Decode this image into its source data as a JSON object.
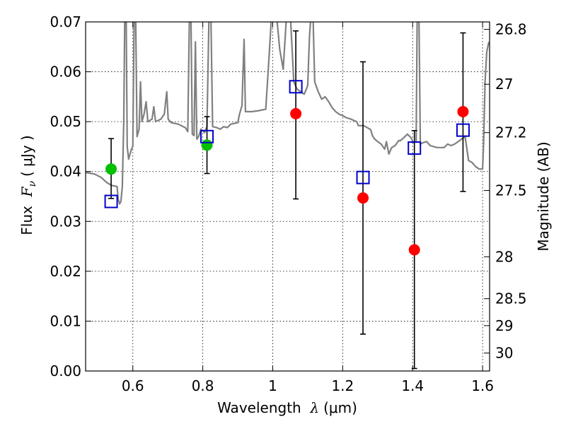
{
  "chart_data": {
    "type": "scatter",
    "xlabel": {
      "prefix": "Wavelength  ",
      "symbol": "λ",
      "unit": "(μm)"
    },
    "ylabel": {
      "prefix": "Flux  ",
      "symbol": "F",
      "sub": "ν",
      "unit": "( μJy )"
    },
    "ylabel_right": "Magnitude (AB)",
    "xlim": [
      0.465,
      1.62
    ],
    "ylim": [
      0.0,
      0.07
    ],
    "grid": true,
    "x_ticks": [
      {
        "value": 0.6,
        "label": "0.6"
      },
      {
        "value": 0.8,
        "label": "0.8"
      },
      {
        "value": 1.0,
        "label": "1"
      },
      {
        "value": 1.2,
        "label": "1.2"
      },
      {
        "value": 1.4,
        "label": "1.4"
      },
      {
        "value": 1.6,
        "label": "1.6"
      }
    ],
    "y_ticks": [
      {
        "value": 0.0,
        "label": "0.00"
      },
      {
        "value": 0.01,
        "label": "0.01"
      },
      {
        "value": 0.02,
        "label": "0.02"
      },
      {
        "value": 0.03,
        "label": "0.03"
      },
      {
        "value": 0.04,
        "label": "0.04"
      },
      {
        "value": 0.05,
        "label": "0.05"
      },
      {
        "value": 0.06,
        "label": "0.06"
      },
      {
        "value": 0.07,
        "label": "0.07"
      }
    ],
    "right_ticks": [
      {
        "label": "26.8",
        "flux": 0.0685
      },
      {
        "label": "27",
        "flux": 0.0575
      },
      {
        "label": "27.2",
        "flux": 0.0478
      },
      {
        "label": "27.5",
        "flux": 0.0362
      },
      {
        "label": "28",
        "flux": 0.0229
      },
      {
        "label": "28.5",
        "flux": 0.0145
      },
      {
        "label": "29",
        "flux": 0.0091
      },
      {
        "label": "30",
        "flux": 0.0036
      }
    ],
    "series": [
      {
        "kind": "model",
        "color": "#808080",
        "points": [
          [
            0.465,
            0.0398
          ],
          [
            0.49,
            0.0395
          ],
          [
            0.51,
            0.0388
          ],
          [
            0.525,
            0.0378
          ],
          [
            0.54,
            0.0372
          ],
          [
            0.555,
            0.037
          ],
          [
            0.558,
            0.0345
          ],
          [
            0.562,
            0.0335
          ],
          [
            0.566,
            0.034
          ],
          [
            0.57,
            0.037
          ],
          [
            0.574,
            0.05
          ],
          [
            0.577,
            0.072
          ],
          [
            0.581,
            0.072
          ],
          [
            0.584,
            0.045
          ],
          [
            0.588,
            0.0425
          ],
          [
            0.592,
            0.0435
          ],
          [
            0.596,
            0.0445
          ],
          [
            0.6,
            0.045
          ],
          [
            0.604,
            0.072
          ],
          [
            0.608,
            0.072
          ],
          [
            0.612,
            0.047
          ],
          [
            0.618,
            0.0485
          ],
          [
            0.622,
            0.058
          ],
          [
            0.626,
            0.05
          ],
          [
            0.632,
            0.0515
          ],
          [
            0.638,
            0.054
          ],
          [
            0.643,
            0.05
          ],
          [
            0.655,
            0.0505
          ],
          [
            0.66,
            0.053
          ],
          [
            0.665,
            0.05
          ],
          [
            0.68,
            0.0505
          ],
          [
            0.69,
            0.0515
          ],
          [
            0.697,
            0.056
          ],
          [
            0.701,
            0.0505
          ],
          [
            0.71,
            0.0498
          ],
          [
            0.73,
            0.0495
          ],
          [
            0.75,
            0.0488
          ],
          [
            0.757,
            0.048
          ],
          [
            0.762,
            0.072
          ],
          [
            0.766,
            0.072
          ],
          [
            0.77,
            0.0475
          ],
          [
            0.775,
            0.0472
          ],
          [
            0.779,
            0.066
          ],
          [
            0.783,
            0.0465
          ],
          [
            0.788,
            0.047
          ],
          [
            0.795,
            0.0485
          ],
          [
            0.805,
            0.0478
          ],
          [
            0.812,
            0.049
          ],
          [
            0.818,
            0.072
          ],
          [
            0.823,
            0.072
          ],
          [
            0.828,
            0.049
          ],
          [
            0.84,
            0.0488
          ],
          [
            0.85,
            0.0485
          ],
          [
            0.86,
            0.049
          ],
          [
            0.87,
            0.0488
          ],
          [
            0.88,
            0.0495
          ],
          [
            0.9,
            0.0498
          ],
          [
            0.905,
            0.0515
          ],
          [
            0.912,
            0.0532
          ],
          [
            0.918,
            0.0665
          ],
          [
            0.922,
            0.052
          ],
          [
            0.94,
            0.052
          ],
          [
            0.96,
            0.0522
          ],
          [
            0.98,
            0.0525
          ],
          [
            0.985,
            0.058
          ],
          [
            0.99,
            0.0635
          ],
          [
            0.996,
            0.0705
          ],
          [
            1.002,
            0.072
          ],
          [
            1.01,
            0.072
          ],
          [
            1.02,
            0.0645
          ],
          [
            1.03,
            0.0605
          ],
          [
            1.04,
            0.072
          ],
          [
            1.05,
            0.072
          ],
          [
            1.06,
            0.058
          ],
          [
            1.07,
            0.0565
          ],
          [
            1.08,
            0.056
          ],
          [
            1.09,
            0.0555
          ],
          [
            1.1,
            0.0572
          ],
          [
            1.105,
            0.067
          ],
          [
            1.11,
            0.072
          ],
          [
            1.115,
            0.072
          ],
          [
            1.12,
            0.058
          ],
          [
            1.13,
            0.056
          ],
          [
            1.14,
            0.0545
          ],
          [
            1.15,
            0.055
          ],
          [
            1.16,
            0.054
          ],
          [
            1.17,
            0.0528
          ],
          [
            1.18,
            0.052
          ],
          [
            1.19,
            0.0515
          ],
          [
            1.2,
            0.0512
          ],
          [
            1.21,
            0.0508
          ],
          [
            1.22,
            0.0506
          ],
          [
            1.23,
            0.0503
          ],
          [
            1.24,
            0.05
          ],
          [
            1.245,
            0.0492
          ],
          [
            1.26,
            0.0492
          ],
          [
            1.27,
            0.0488
          ],
          [
            1.28,
            0.0484
          ],
          [
            1.285,
            0.0472
          ],
          [
            1.29,
            0.0466
          ],
          [
            1.3,
            0.046
          ],
          [
            1.31,
            0.0455
          ],
          [
            1.32,
            0.0445
          ],
          [
            1.325,
            0.046
          ],
          [
            1.332,
            0.0435
          ],
          [
            1.34,
            0.0448
          ],
          [
            1.35,
            0.0452
          ],
          [
            1.36,
            0.0462
          ],
          [
            1.365,
            0.0462
          ],
          [
            1.375,
            0.0468
          ],
          [
            1.385,
            0.0475
          ],
          [
            1.395,
            0.0468
          ],
          [
            1.402,
            0.0458
          ],
          [
            1.41,
            0.046
          ],
          [
            1.413,
            0.072
          ],
          [
            1.418,
            0.072
          ],
          [
            1.422,
            0.0455
          ],
          [
            1.43,
            0.0458
          ],
          [
            1.44,
            0.046
          ],
          [
            1.45,
            0.0452
          ],
          [
            1.46,
            0.045
          ],
          [
            1.47,
            0.0448
          ],
          [
            1.49,
            0.0448
          ],
          [
            1.5,
            0.0455
          ],
          [
            1.51,
            0.0452
          ],
          [
            1.52,
            0.0455
          ],
          [
            1.53,
            0.046
          ],
          [
            1.54,
            0.0465
          ],
          [
            1.55,
            0.047
          ],
          [
            1.56,
            0.0422
          ],
          [
            1.57,
            0.0418
          ],
          [
            1.58,
            0.041
          ],
          [
            1.59,
            0.0405
          ],
          [
            1.6,
            0.0405
          ],
          [
            1.603,
            0.046
          ],
          [
            1.607,
            0.058
          ],
          [
            1.612,
            0.064
          ],
          [
            1.618,
            0.066
          ]
        ]
      },
      {
        "kind": "marker",
        "marker": "circle",
        "color": "#00c000",
        "points": [
          [
            0.538,
            0.0405
          ],
          [
            0.812,
            0.0453
          ]
        ]
      },
      {
        "kind": "marker",
        "marker": "circle",
        "color": "#ff0000",
        "points": [
          [
            1.066,
            0.0516
          ],
          [
            1.258,
            0.0347
          ],
          [
            1.405,
            0.0243
          ],
          [
            1.544,
            0.052
          ]
        ]
      },
      {
        "kind": "marker",
        "marker": "square",
        "color": "#0000cc",
        "points": [
          [
            0.538,
            0.034
          ],
          [
            0.812,
            0.047
          ],
          [
            1.066,
            0.057
          ],
          [
            1.258,
            0.0388
          ],
          [
            1.405,
            0.0447
          ],
          [
            1.544,
            0.0483
          ]
        ]
      }
    ],
    "error_bars": [
      {
        "x": 0.538,
        "low": 0.0346,
        "high": 0.0466
      },
      {
        "x": 0.812,
        "low": 0.0396,
        "high": 0.051
      },
      {
        "x": 1.066,
        "low": 0.0345,
        "high": 0.0682
      },
      {
        "x": 1.258,
        "low": 0.0074,
        "high": 0.062
      },
      {
        "x": 1.405,
        "low": 0.0005,
        "high": 0.0482
      },
      {
        "x": 1.544,
        "low": 0.036,
        "high": 0.0678
      }
    ]
  }
}
